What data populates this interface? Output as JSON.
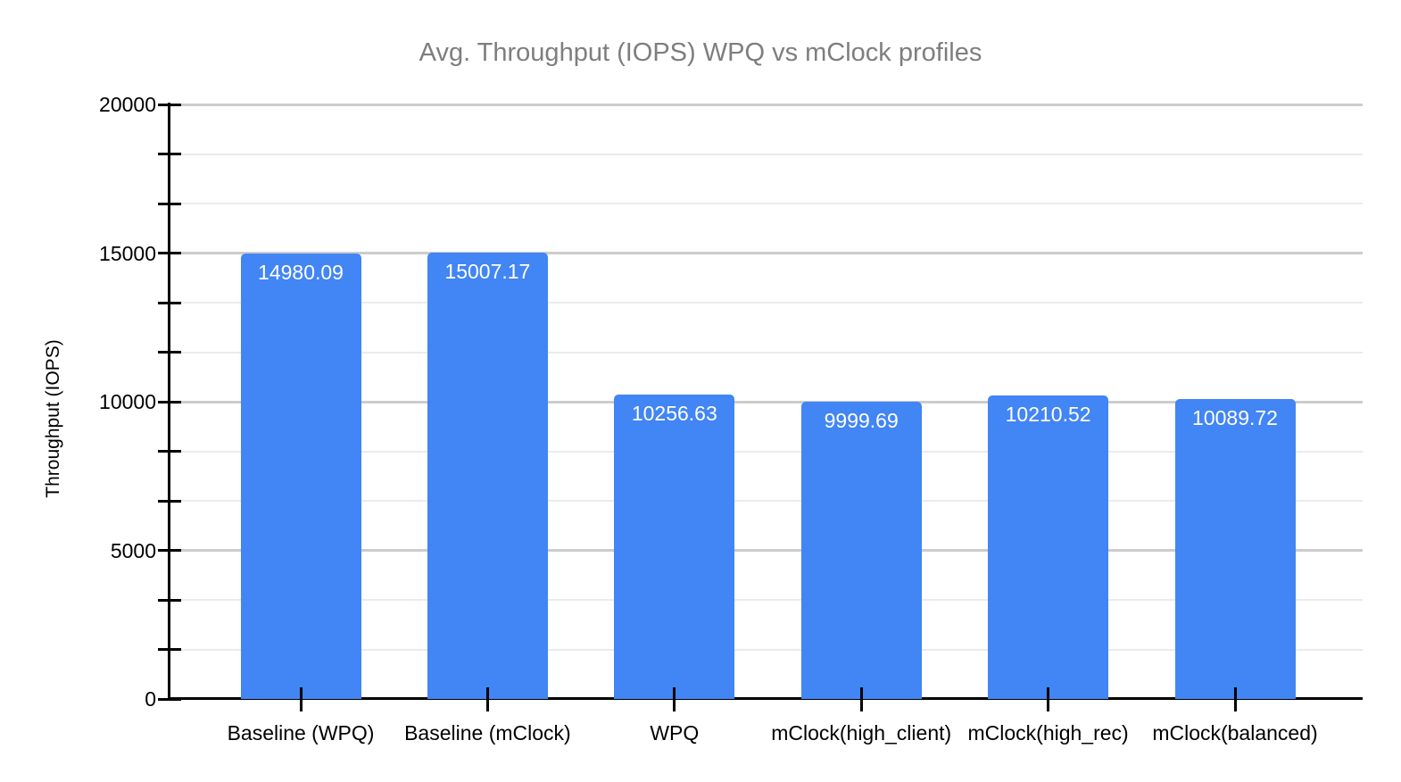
{
  "chart_data": {
    "type": "bar",
    "title": "Avg. Throughput (IOPS) WPQ vs mClock profiles",
    "ylabel": "Throughput (IOPS)",
    "xlabel": "",
    "categories": [
      "Baseline (WPQ)",
      "Baseline (mClock)",
      "WPQ",
      "mClock(high_client)",
      "mClock(high_rec)",
      "mClock(balanced)"
    ],
    "values": [
      14980.09,
      15007.17,
      10256.63,
      9999.69,
      10210.52,
      10089.72
    ],
    "value_labels": [
      "14980.09",
      "15007.17",
      "10256.63",
      "9999.69",
      "10210.52",
      "10089.72"
    ],
    "ylim": [
      0,
      20000
    ],
    "yticks": [
      0,
      5000,
      10000,
      15000,
      20000
    ],
    "ytick_labels": [
      "0",
      "5000",
      "10000",
      "15000",
      "20000"
    ],
    "minor_divisions_per_interval": 3,
    "grid": true,
    "legend": "none",
    "colors": {
      "bar": "#4285F4",
      "bar_label_text": "#ffffff",
      "title": "#7e7e7e",
      "axis": "#000000",
      "gridline_major": "#cccccc",
      "gridline_minor": "#ebebeb",
      "background": "#ffffff"
    }
  }
}
